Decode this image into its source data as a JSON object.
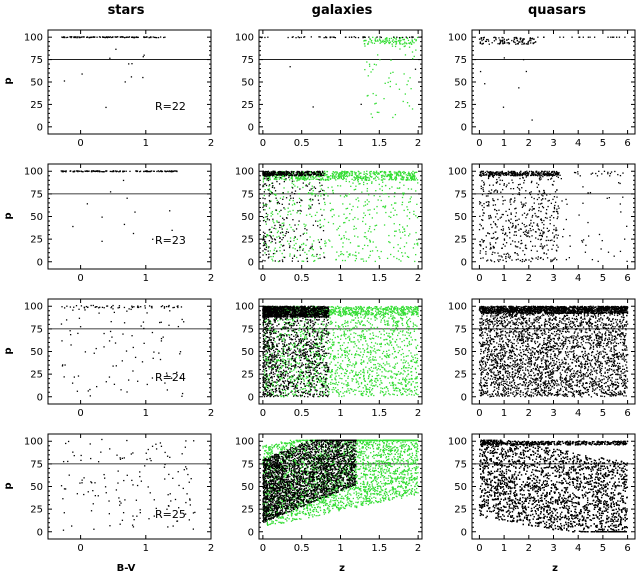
{
  "columns": [
    "stars",
    "galaxies",
    "quasars"
  ],
  "ylabel": "p",
  "chart_data": {
    "type": "scatter",
    "grid_layout": "4 rows x 3 columns",
    "reference_line_y": 75,
    "colors": {
      "objects": "#000000",
      "subset": "#33dd33"
    },
    "axes": {
      "stars": {
        "xlim": [
          -0.5,
          2
        ],
        "xticks": [
          0,
          1,
          2
        ],
        "xlabel": "B-V"
      },
      "galaxies": {
        "xlim": [
          -0.05,
          2.05
        ],
        "xticks": [
          0,
          0.5,
          1,
          1.5,
          2
        ],
        "xlabel": "z"
      },
      "quasars": {
        "xlim": [
          -0.3,
          6.3
        ],
        "xticks": [
          0,
          1,
          2,
          3,
          4,
          5,
          6
        ],
        "xlabel": "z"
      }
    },
    "ylim": [
      -8,
      108
    ],
    "yticks": [
      0,
      25,
      50,
      75,
      100
    ],
    "rows": [
      {
        "magnitude_label": "R=22",
        "stars": {
          "dist": "top",
          "n": 130,
          "xr": [
            -0.3,
            1.3
          ]
        },
        "galaxies": {
          "black": {
            "dist": "top",
            "n": 60
          },
          "green": {
            "dist": "highz",
            "n": 160
          }
        },
        "quasars": {
          "dist": "q22",
          "n": 140
        }
      },
      {
        "magnitude_label": "R=23",
        "stars": {
          "dist": "top",
          "n": 160,
          "xr": [
            -0.3,
            1.5
          ]
        },
        "galaxies": {
          "black": {
            "dist": "lowz",
            "n": 550
          },
          "green": {
            "dist": "spread",
            "n": 1100
          }
        },
        "quasars": {
          "dist": "q23",
          "n": 900
        }
      },
      {
        "magnitude_label": "R=24",
        "stars": {
          "dist": "mid",
          "n": 150,
          "xr": [
            -0.3,
            1.6
          ]
        },
        "galaxies": {
          "black": {
            "dist": "lowz2",
            "n": 2300
          },
          "green": {
            "dist": "broad",
            "n": 2300
          }
        },
        "quasars": {
          "dist": "q24",
          "n": 4500
        }
      },
      {
        "magnitude_label": "R=25",
        "stars": {
          "dist": "uniform",
          "n": 140,
          "xr": [
            -0.3,
            1.8
          ]
        },
        "galaxies": {
          "black": {
            "dist": "lowz3",
            "n": 3000
          },
          "green": {
            "dist": "broad2",
            "n": 3000
          }
        },
        "quasars": {
          "dist": "q25",
          "n": 6000
        }
      }
    ]
  }
}
